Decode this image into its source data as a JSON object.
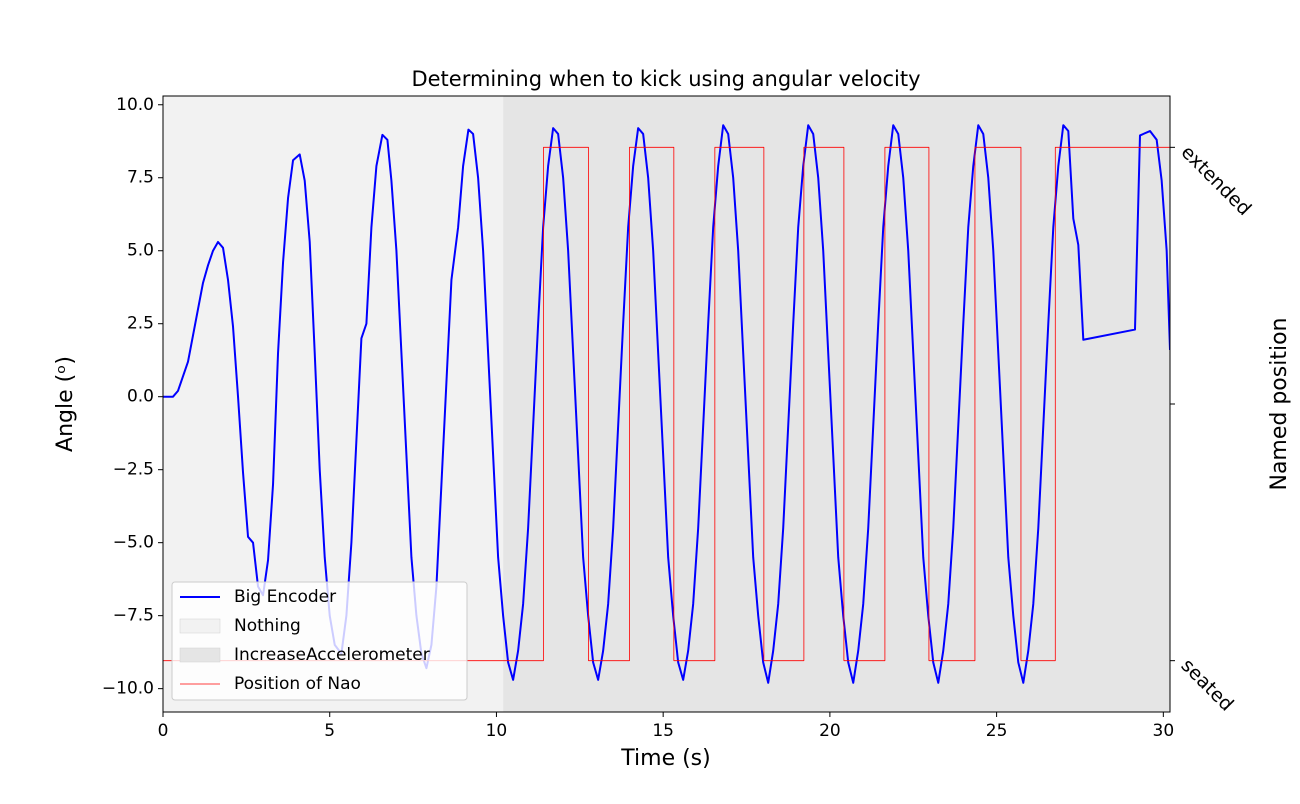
{
  "chart_data": {
    "type": "line",
    "title": "Determining when to kick using angular velocity",
    "xlabel": "Time (s)",
    "ylabel": "Angle (ᵒ)",
    "y2label": "Named position",
    "xlim": [
      0,
      30.2
    ],
    "ylim": [
      -10.8,
      10.3
    ],
    "y2lim": [
      -0.2,
      2.2
    ],
    "xticks": [
      0,
      5,
      10,
      15,
      20,
      25,
      30
    ],
    "yticks": [
      {
        "value": -10,
        "label": "−10.0"
      },
      {
        "value": -7.5,
        "label": "−7.5"
      },
      {
        "value": -5,
        "label": "−5.0"
      },
      {
        "value": -2.5,
        "label": "−2.5"
      },
      {
        "value": 0,
        "label": "0.0"
      },
      {
        "value": 2.5,
        "label": "2.5"
      },
      {
        "value": 5,
        "label": "5.0"
      },
      {
        "value": 7.5,
        "label": "7.5"
      },
      {
        "value": 10,
        "label": "10.0"
      }
    ],
    "y2ticks": [
      {
        "value": 0,
        "label": "seated"
      },
      {
        "value": 1,
        "label": null
      },
      {
        "value": 2,
        "label": "extended"
      }
    ],
    "legend": "lower left",
    "spans": [
      {
        "name": "Nothing",
        "color": "#f2f2f2",
        "start": 0,
        "end": 10.2
      },
      {
        "name": "IncreaseAccelerometer",
        "color": "#e5e5e5",
        "start": 10.2,
        "end": 30.2
      }
    ],
    "series": [
      {
        "name": "Big Encoder",
        "color": "#0000ff",
        "width": 2,
        "x": [
          0,
          0.3,
          0.45,
          0.75,
          1.2,
          1.35,
          1.5,
          1.65,
          1.8,
          1.95,
          2.1,
          2.25,
          2.4,
          2.55,
          2.7,
          2.85,
          3,
          3.15,
          3.3,
          3.45,
          3.6,
          3.75,
          3.9,
          4.1,
          4.25,
          4.4,
          4.55,
          4.7,
          4.85,
          5,
          5.15,
          5.35,
          5.5,
          5.65,
          5.8,
          5.95,
          6.1,
          6.25,
          6.4,
          6.58,
          6.73,
          6.85,
          7,
          7.15,
          7.3,
          7.45,
          7.6,
          7.75,
          7.9,
          8.05,
          8.2,
          8.35,
          8.5,
          8.65,
          8.85,
          9,
          9.16,
          9.3,
          9.45,
          9.6,
          9.75,
          9.9,
          10.05,
          10.2,
          10.35,
          10.5,
          10.65,
          10.8,
          10.95,
          11.1,
          11.25,
          11.4,
          11.55,
          11.7,
          11.85,
          12,
          12.15,
          12.3,
          12.45,
          12.6,
          12.75,
          12.9,
          13.05,
          13.2,
          13.35,
          13.5,
          13.65,
          13.8,
          13.95,
          14.1,
          14.25,
          14.4,
          14.55,
          14.7,
          14.85,
          15,
          15.15,
          15.3,
          15.45,
          15.6,
          15.75,
          15.9,
          16.05,
          16.2,
          16.35,
          16.5,
          16.65,
          16.8,
          16.95,
          17.1,
          17.25,
          17.4,
          17.55,
          17.7,
          17.85,
          18,
          18.15,
          18.3,
          18.45,
          18.6,
          18.75,
          18.9,
          19.05,
          19.2,
          19.35,
          19.5,
          19.65,
          19.8,
          19.95,
          20.1,
          20.25,
          20.4,
          20.55,
          20.7,
          20.85,
          21,
          21.15,
          21.3,
          21.45,
          21.6,
          21.75,
          21.9,
          22.05,
          22.2,
          22.35,
          22.5,
          22.65,
          22.8,
          22.95,
          23.1,
          23.25,
          23.4,
          23.55,
          23.7,
          23.85,
          24,
          24.15,
          24.3,
          24.45,
          24.6,
          24.75,
          24.9,
          25.05,
          25.2,
          25.35,
          25.5,
          25.65,
          25.8,
          25.95,
          26.1,
          26.25,
          26.4,
          26.55,
          26.7,
          26.85,
          27,
          27.15,
          27.3,
          27.45,
          27.6,
          29.15,
          29.3,
          29.6,
          29.8,
          29.95,
          30.1,
          30.2
        ],
        "values": [
          0,
          0,
          0.2,
          1.2,
          3.9,
          4.5,
          5,
          5.3,
          5.1,
          4,
          2.4,
          0,
          -2.6,
          -4.8,
          -5,
          -6.5,
          -6.8,
          -5.6,
          -3,
          1.5,
          4.6,
          6.8,
          8.1,
          8.3,
          7.4,
          5.3,
          1.5,
          -2.5,
          -5.5,
          -7.5,
          -8.5,
          -8.8,
          -7.5,
          -5,
          -1.5,
          2,
          2.5,
          5.8,
          7.9,
          8.97,
          8.8,
          7.4,
          5,
          1.5,
          -2,
          -5.5,
          -7.5,
          -8.8,
          -9.3,
          -8.5,
          -6.5,
          -3,
          0.5,
          4,
          5.8,
          7.9,
          9.15,
          9,
          7.5,
          5,
          1.5,
          -2,
          -5.5,
          -7.5,
          -9.1,
          -9.7,
          -8.7,
          -7.1,
          -4.5,
          -1,
          2.5,
          5.8,
          7.9,
          9.2,
          9,
          7.5,
          5,
          1.5,
          -2,
          -5.5,
          -7.5,
          -9.1,
          -9.7,
          -8.7,
          -7.1,
          -4.5,
          -1,
          2.5,
          5.8,
          7.9,
          9.2,
          9,
          7.5,
          5,
          1.5,
          -2,
          -5.5,
          -7.5,
          -9.1,
          -9.7,
          -8.7,
          -7.1,
          -4.5,
          -1,
          2.5,
          5.8,
          7.9,
          9.3,
          9,
          7.5,
          5,
          1.5,
          -2,
          -5.5,
          -7.5,
          -9.1,
          -9.8,
          -8.7,
          -7.1,
          -4.5,
          -1,
          2.5,
          5.8,
          7.9,
          9.3,
          9,
          7.5,
          5,
          1.5,
          -2,
          -5.5,
          -7.5,
          -9.1,
          -9.8,
          -8.7,
          -7.1,
          -4.5,
          -1,
          2.5,
          5.8,
          7.9,
          9.3,
          9,
          7.5,
          5,
          1.5,
          -2,
          -5.5,
          -7.5,
          -9.1,
          -9.8,
          -8.7,
          -7.1,
          -4.5,
          -1,
          2.5,
          5.8,
          7.9,
          9.3,
          9,
          7.5,
          5,
          1.5,
          -2,
          -5.5,
          -7.5,
          -9.1,
          -9.8,
          -8.7,
          -7.1,
          -4.5,
          -1,
          2.5,
          5.8,
          7.9,
          9.3,
          9.1,
          6.1,
          5.2,
          1.95,
          2.3,
          8.95,
          9.1,
          8.8,
          7.4,
          5,
          1.6
        ]
      },
      {
        "name": "Position of Nao",
        "color": "#ff0000",
        "width": 0.8,
        "axis": "y2",
        "step": "post",
        "x": [
          0,
          11.41,
          12.76,
          13.99,
          15.32,
          16.55,
          18.02,
          19.22,
          20.42,
          21.65,
          22.97,
          24.35,
          25.73,
          26.76,
          30.2
        ],
        "values": [
          0,
          2,
          0,
          2,
          0,
          2,
          0,
          2,
          0,
          2,
          0,
          2,
          0,
          2,
          2
        ]
      }
    ]
  }
}
